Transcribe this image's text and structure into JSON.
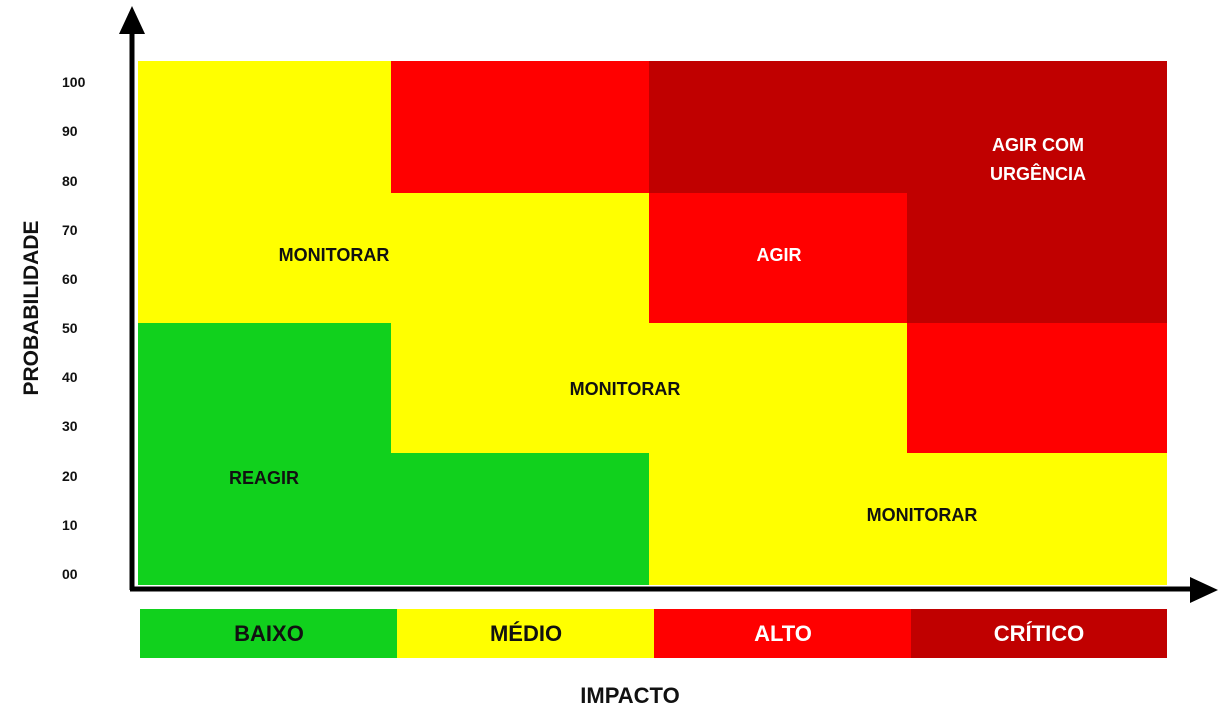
{
  "colors": {
    "green": "#11d11d",
    "yellow": "#ffff00",
    "red": "#ff0000",
    "dark_red": "#c00000",
    "axis": "#000000"
  },
  "y_axis": {
    "title": "PROBABILIDADE",
    "ticks": [
      "100",
      "90",
      "80",
      "70",
      "60",
      "50",
      "40",
      "30",
      "20",
      "10",
      "00"
    ]
  },
  "x_axis": {
    "title": "IMPACTO"
  },
  "zones": {
    "monitorar_top": "MONITORAR",
    "agir": "AGIR",
    "agir_com_urgencia_line1": "AGIR COM",
    "agir_com_urgencia_line2": "URGÊNCIA",
    "monitorar_middle": "MONITORAR",
    "reagir": "REAGIR",
    "monitorar_bottom": "MONITORAR"
  },
  "legend": [
    {
      "label": "BAIXO",
      "color": "#11d11d",
      "text_color": "#111111"
    },
    {
      "label": "MÉDIO",
      "color": "#ffff00",
      "text_color": "#111111"
    },
    {
      "label": "ALTO",
      "color": "#ff0000",
      "text_color": "#ffffff"
    },
    {
      "label": "CRÍTICO",
      "color": "#c00000",
      "text_color": "#ffffff"
    }
  ]
}
